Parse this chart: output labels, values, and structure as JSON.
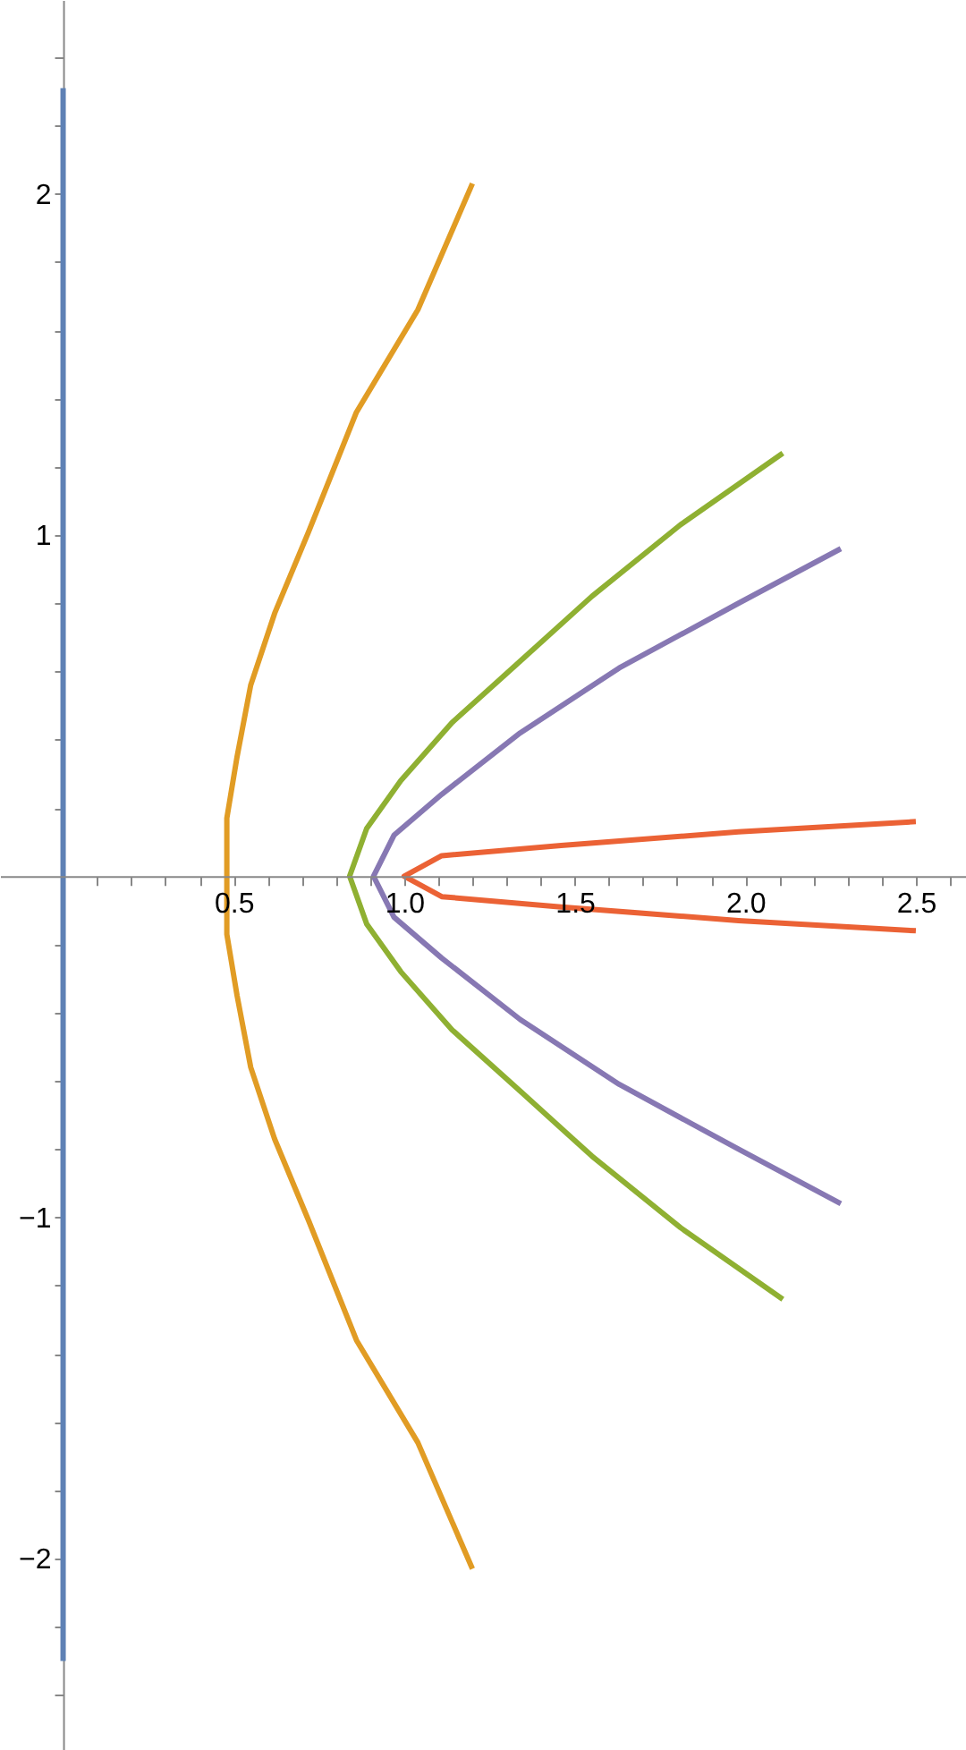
{
  "chart_data": {
    "type": "line",
    "grid": false,
    "marker": "none",
    "line_style": "solid",
    "xlim": [
      -0.185,
      2.647
    ],
    "ylim": [
      -2.561,
      2.568
    ],
    "xticks": [
      {
        "value": 0.1,
        "label": null
      },
      {
        "value": 0.2,
        "label": null
      },
      {
        "value": 0.3,
        "label": null
      },
      {
        "value": 0.4,
        "label": null
      },
      {
        "value": 0.5,
        "label": "0.5"
      },
      {
        "value": 0.6,
        "label": null
      },
      {
        "value": 0.7,
        "label": null
      },
      {
        "value": 0.8,
        "label": null
      },
      {
        "value": 0.9,
        "label": null
      },
      {
        "value": 1.0,
        "label": "1.0"
      },
      {
        "value": 1.1,
        "label": null
      },
      {
        "value": 1.2,
        "label": null
      },
      {
        "value": 1.3,
        "label": null
      },
      {
        "value": 1.4,
        "label": null
      },
      {
        "value": 1.5,
        "label": "1.5"
      },
      {
        "value": 1.6,
        "label": null
      },
      {
        "value": 1.7,
        "label": null
      },
      {
        "value": 1.8,
        "label": null
      },
      {
        "value": 1.9,
        "label": null
      },
      {
        "value": 2.0,
        "label": "2.0"
      },
      {
        "value": 2.1,
        "label": null
      },
      {
        "value": 2.2,
        "label": null
      },
      {
        "value": 2.3,
        "label": null
      },
      {
        "value": 2.4,
        "label": null
      },
      {
        "value": 2.5,
        "label": "2.5"
      },
      {
        "value": 2.6,
        "label": null
      }
    ],
    "yticks": [
      {
        "value": -2.4,
        "label": null
      },
      {
        "value": -2.2,
        "label": null
      },
      {
        "value": -2,
        "label": "−2"
      },
      {
        "value": -1.8,
        "label": null
      },
      {
        "value": -1.6,
        "label": null
      },
      {
        "value": -1.4,
        "label": null
      },
      {
        "value": -1.2,
        "label": null
      },
      {
        "value": -1,
        "label": "−1"
      },
      {
        "value": -0.8,
        "label": null
      },
      {
        "value": -0.6,
        "label": null
      },
      {
        "value": -0.4,
        "label": null
      },
      {
        "value": -0.2,
        "label": null
      },
      {
        "value": 0.2,
        "label": null
      },
      {
        "value": 0.4,
        "label": null
      },
      {
        "value": 0.6,
        "label": null
      },
      {
        "value": 0.8,
        "label": null
      },
      {
        "value": 1,
        "label": "1"
      },
      {
        "value": 1.2,
        "label": null
      },
      {
        "value": 1.4,
        "label": null
      },
      {
        "value": 1.6,
        "label": null
      },
      {
        "value": 1.8,
        "label": null
      },
      {
        "value": 2,
        "label": "2"
      },
      {
        "value": 2.2,
        "label": null
      },
      {
        "value": 2.4,
        "label": null
      }
    ],
    "series": [
      {
        "color": "#5e81b5",
        "x": [
          0,
          0
        ],
        "values": [
          2.31,
          -2.3
        ]
      },
      {
        "color": "#e19c24",
        "x": [
          1.2,
          1.04,
          0.86,
          0.72,
          0.62,
          0.55,
          0.51,
          0.48,
          0.48,
          0.48,
          0.51,
          0.55,
          0.62,
          0.72,
          0.86,
          1.04,
          1.2
        ],
        "values": [
          2.03,
          1.66,
          1.36,
          1.01,
          0.77,
          0.56,
          0.35,
          0.17,
          0,
          -0.17,
          -0.35,
          -0.56,
          -0.77,
          -1.01,
          -1.36,
          -1.66,
          -2.03
        ]
      },
      {
        "color": "#8fb032",
        "x": [
          2.11,
          1.81,
          1.55,
          1.34,
          1.14,
          0.99,
          0.89,
          0.84,
          0.89,
          0.99,
          1.14,
          1.34,
          1.55,
          1.81,
          2.11
        ],
        "values": [
          1.24,
          1.03,
          0.82,
          0.63,
          0.45,
          0.28,
          0.14,
          0,
          -0.14,
          -0.28,
          -0.45,
          -0.63,
          -0.82,
          -1.03,
          -1.24
        ]
      },
      {
        "color": "#8778b3",
        "x": [
          2.28,
          1.98,
          1.63,
          1.34,
          1.11,
          0.97,
          0.91,
          0.97,
          1.11,
          1.34,
          1.63,
          1.98,
          2.28
        ],
        "values": [
          0.96,
          0.8,
          0.61,
          0.42,
          0.24,
          0.12,
          0,
          -0.12,
          -0.24,
          -0.42,
          -0.61,
          -0.8,
          -0.96
        ]
      },
      {
        "color": "#eb6235",
        "x": [
          2.5,
          1.98,
          1.46,
          1.11,
          1.0,
          1.11,
          1.46,
          1.98,
          2.5
        ],
        "values": [
          0.16,
          0.13,
          0.09,
          0.06,
          0,
          -0.06,
          -0.09,
          -0.13,
          -0.16
        ]
      }
    ]
  }
}
